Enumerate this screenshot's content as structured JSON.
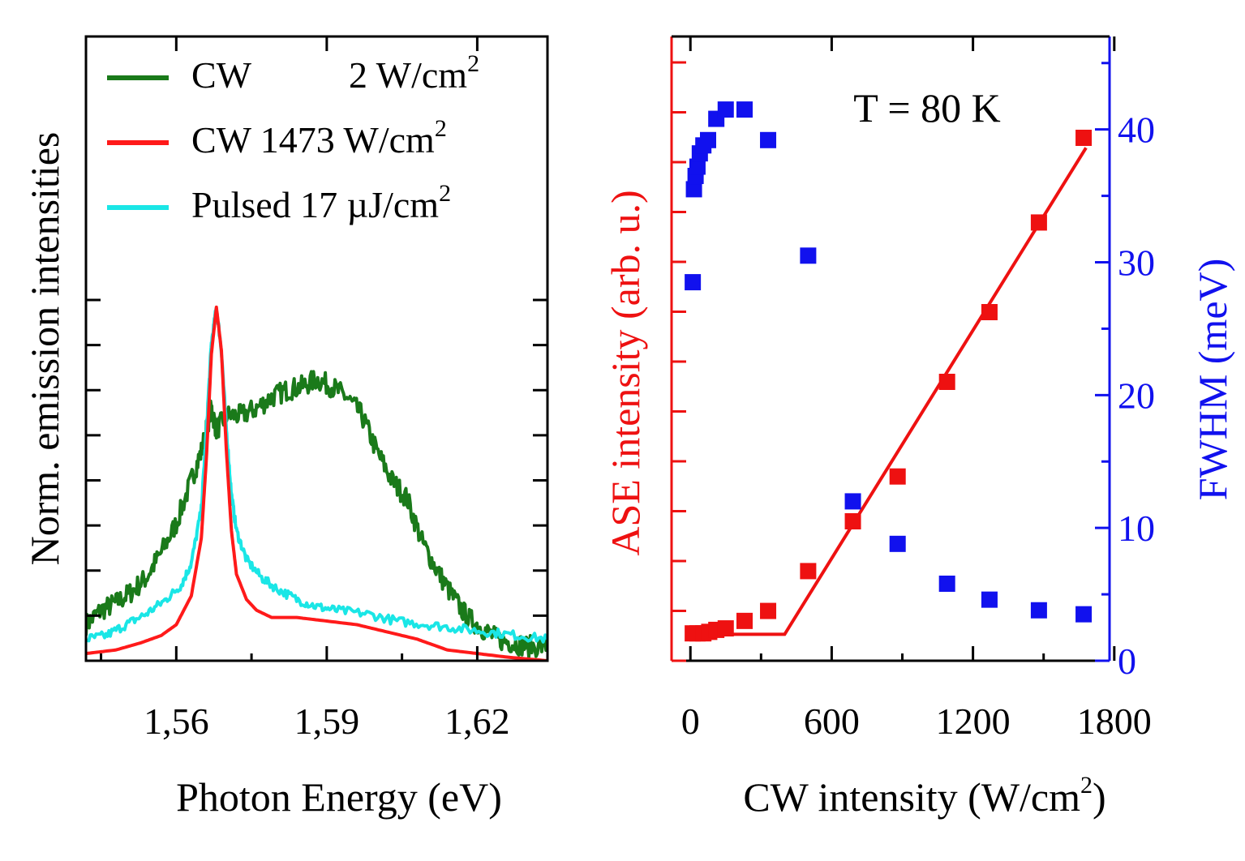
{
  "colors": {
    "cw_low": "#1a7a1a",
    "cw_high": "#ff1a1a",
    "pulsed": "#1ae6e6",
    "ase": "#ee1111",
    "fwhm": "#1111ee",
    "axis": "#000000"
  },
  "chart_data": [
    {
      "type": "line",
      "xlabel": "Photon Energy (eV)",
      "ylabel": "Norm. emission intensities",
      "xlim": [
        1.542,
        1.634
      ],
      "ylim": [
        0,
        1.0
      ],
      "xticks": [
        "1,56",
        "1,59",
        "1,62"
      ],
      "xtick_values": [
        1.56,
        1.59,
        1.62
      ],
      "yticks_labeled": false,
      "legend_position": "top-left",
      "series": [
        {
          "name": "CW 2 W/cm2",
          "legend_parts": [
            "CW",
            "2 W/cm",
            "2"
          ],
          "color": "#1a7a1a",
          "x": [
            1.542,
            1.545,
            1.548,
            1.551,
            1.554,
            1.557,
            1.56,
            1.563,
            1.565,
            1.567,
            1.568,
            1.57,
            1.573,
            1.576,
            1.579,
            1.582,
            1.585,
            1.588,
            1.591,
            1.594,
            1.597,
            1.6,
            1.603,
            1.606,
            1.609,
            1.612,
            1.615,
            1.618,
            1.621,
            1.624,
            1.627,
            1.63,
            1.634
          ],
          "y": [
            0.1,
            0.14,
            0.16,
            0.19,
            0.23,
            0.3,
            0.38,
            0.5,
            0.58,
            0.7,
            0.64,
            0.68,
            0.68,
            0.7,
            0.73,
            0.75,
            0.76,
            0.78,
            0.76,
            0.73,
            0.68,
            0.58,
            0.5,
            0.45,
            0.33,
            0.25,
            0.18,
            0.12,
            0.09,
            0.06,
            0.05,
            0.04,
            0.04
          ]
        },
        {
          "name": "CW 1473 W/cm2",
          "legend_parts": [
            "CW 1473 W/cm",
            "2"
          ],
          "color": "#ff1a1a",
          "x": [
            1.542,
            1.548,
            1.553,
            1.557,
            1.56,
            1.563,
            1.565,
            1.566,
            1.567,
            1.568,
            1.569,
            1.57,
            1.571,
            1.572,
            1.574,
            1.576,
            1.579,
            1.584,
            1.59,
            1.596,
            1.602,
            1.608,
            1.614,
            1.62,
            1.626,
            1.634
          ],
          "y": [
            0.02,
            0.03,
            0.05,
            0.07,
            0.1,
            0.18,
            0.34,
            0.56,
            0.85,
            0.98,
            0.86,
            0.58,
            0.36,
            0.24,
            0.17,
            0.14,
            0.12,
            0.12,
            0.11,
            0.1,
            0.08,
            0.06,
            0.03,
            0.02,
            0.01,
            0.0
          ]
        },
        {
          "name": "Pulsed 17 µJ/cm2",
          "legend_parts": [
            "Pulsed 17 µJ/cm",
            "2"
          ],
          "color": "#1ae6e6",
          "x": [
            1.542,
            1.546,
            1.55,
            1.554,
            1.558,
            1.561,
            1.563,
            1.565,
            1.566,
            1.567,
            1.568,
            1.569,
            1.57,
            1.571,
            1.572,
            1.574,
            1.577,
            1.58,
            1.584,
            1.588,
            1.592,
            1.598,
            1.604,
            1.61,
            1.616,
            1.622,
            1.628,
            1.634
          ],
          "y": [
            0.06,
            0.07,
            0.1,
            0.13,
            0.17,
            0.21,
            0.27,
            0.42,
            0.64,
            0.88,
            0.98,
            0.86,
            0.64,
            0.46,
            0.36,
            0.28,
            0.23,
            0.2,
            0.17,
            0.15,
            0.14,
            0.13,
            0.11,
            0.1,
            0.09,
            0.08,
            0.07,
            0.06
          ]
        }
      ]
    },
    {
      "type": "scatter",
      "xlabel": "CW intensity (W/cm",
      "xlabel_sup": "2",
      "xlabel_end": ")",
      "ylabel": "ASE intensity (arb. u.)",
      "y2label": "FWHM (meV)",
      "annotation": "T = 80 K",
      "xlim": [
        -80,
        1780
      ],
      "xticks": [
        0,
        600,
        1200,
        1800
      ],
      "y2lim": [
        0,
        47
      ],
      "y2ticks": [
        0,
        10,
        20,
        30,
        40
      ],
      "ylim": [
        0,
        1.05
      ],
      "yticks_labeled": false,
      "series": [
        {
          "name": "ASE intensity",
          "axis": "left",
          "color": "#ee1111",
          "x": [
            10,
            30,
            55,
            80,
            110,
            150,
            230,
            330,
            500,
            690,
            880,
            1090,
            1270,
            1480,
            1670
          ],
          "y": [
            0.055,
            0.055,
            0.055,
            0.058,
            0.062,
            0.065,
            0.08,
            0.1,
            0.18,
            0.28,
            0.37,
            0.56,
            0.7,
            0.88,
            1.05
          ]
        },
        {
          "name": "ASE linear fit",
          "axis": "left",
          "color": "#ee1111",
          "style": "line",
          "x": [
            0,
            400,
            1680
          ],
          "y": [
            0.053,
            0.053,
            1.03
          ]
        },
        {
          "name": "FWHM",
          "axis": "right",
          "color": "#1111ee",
          "x": [
            10,
            15,
            22,
            30,
            40,
            55,
            75,
            110,
            150,
            230,
            330,
            500,
            690,
            880,
            1090,
            1270,
            1480,
            1670
          ],
          "y": [
            28.5,
            35.5,
            36.5,
            37.2,
            38.2,
            38.8,
            39.2,
            40.8,
            41.5,
            41.5,
            39.2,
            30.5,
            12.0,
            8.8,
            5.8,
            4.6,
            3.8,
            3.5
          ]
        }
      ]
    }
  ]
}
